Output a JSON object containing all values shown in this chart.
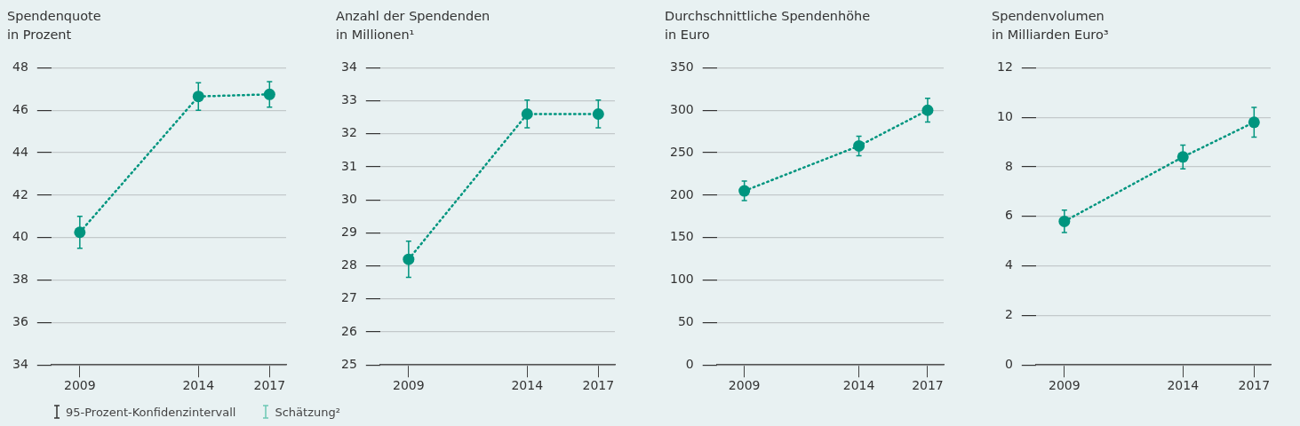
{
  "chart_data": [
    {
      "type": "line",
      "title": "Spendenquote",
      "subtitle": "in Prozent",
      "x": [
        2009,
        2014,
        2017
      ],
      "xlim": [
        2007.8,
        2017.7
      ],
      "xticks": [
        2009,
        2014,
        2017
      ],
      "ylim": [
        34,
        48
      ],
      "yticks": [
        34,
        36,
        38,
        40,
        42,
        44,
        46,
        48
      ],
      "grid": "y",
      "marker": "circle",
      "line_style": "dotted",
      "series": [
        {
          "color": "#00957f",
          "values": [
            40.25,
            46.65,
            46.75
          ],
          "errors": [
            0.75,
            0.65,
            0.6
          ]
        }
      ]
    },
    {
      "type": "line",
      "title": "Anzahl der Spendenden",
      "subtitle": "in Millionen¹",
      "x": [
        2009,
        2014,
        2017
      ],
      "xlim": [
        2007.8,
        2017.7
      ],
      "xticks": [
        2009,
        2014,
        2017
      ],
      "ylim": [
        25,
        34
      ],
      "yticks": [
        25,
        26,
        27,
        28,
        29,
        30,
        31,
        32,
        33,
        34
      ],
      "grid": "y",
      "marker": "circle",
      "line_style": "dotted",
      "series": [
        {
          "color": "#00957f",
          "values": [
            28.2,
            32.6,
            32.6
          ],
          "errors": [
            0.55,
            0.42,
            0.42
          ]
        }
      ]
    },
    {
      "type": "line",
      "title": "Durchschnittliche Spendenhöhe",
      "subtitle": "in Euro",
      "x": [
        2009,
        2014,
        2017
      ],
      "xlim": [
        2007.8,
        2017.7
      ],
      "xticks": [
        2009,
        2014,
        2017
      ],
      "ylim": [
        0,
        350
      ],
      "yticks": [
        0,
        50,
        100,
        150,
        200,
        250,
        300,
        350
      ],
      "grid": "y",
      "marker": "circle",
      "line_style": "dotted",
      "series": [
        {
          "color": "#00957f",
          "values": [
            205,
            258,
            300
          ],
          "errors": [
            11.5,
            11.5,
            14
          ]
        }
      ]
    },
    {
      "type": "line",
      "title": "Spendenvolumen",
      "subtitle": "in Milliarden Euro³",
      "x": [
        2009,
        2014,
        2017
      ],
      "xlim": [
        2007.8,
        2017.7
      ],
      "xticks": [
        2009,
        2014,
        2017
      ],
      "ylim": [
        0,
        12
      ],
      "yticks": [
        0,
        2,
        4,
        6,
        8,
        10,
        12
      ],
      "grid": "y",
      "marker": "circle",
      "line_style": "dotted",
      "series": [
        {
          "color": "#00957f",
          "values": [
            5.8,
            8.4,
            9.8
          ],
          "errors": [
            0.45,
            0.48,
            0.6
          ]
        }
      ]
    },
    {
      "type": "other",
      "legend": "bottom left",
      "series": [
        {
          "name": "95-Prozent-Konfidenzintervall",
          "color": "#333333"
        },
        {
          "name": "Schätzung²",
          "color": "#6cc7b4"
        }
      ]
    }
  ]
}
